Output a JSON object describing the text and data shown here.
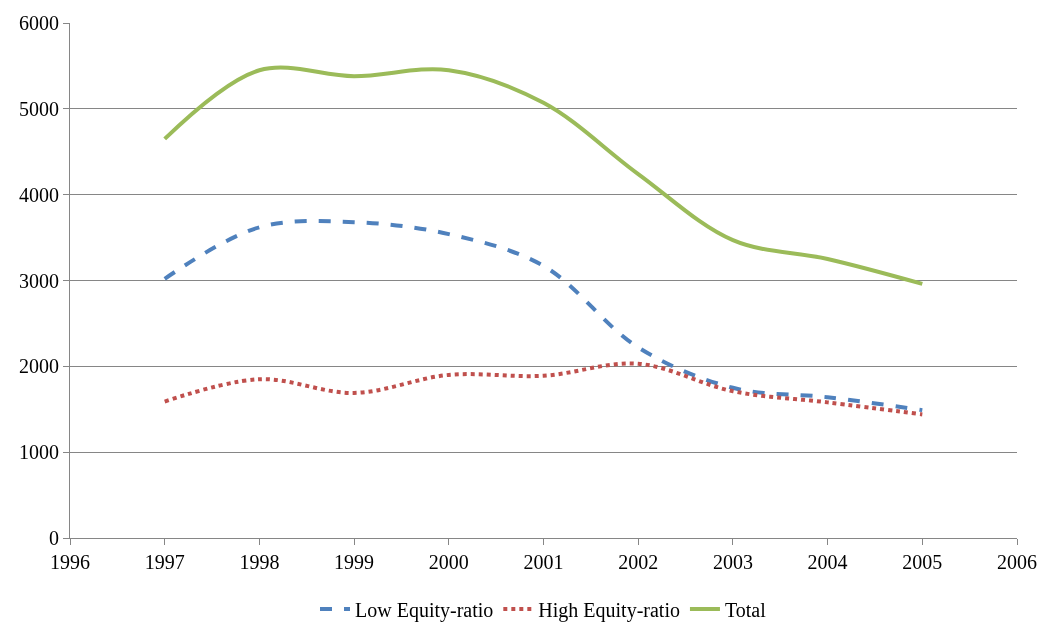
{
  "chart_data": {
    "type": "line",
    "x": [
      1997,
      1998,
      1999,
      2000,
      2001,
      2002,
      2003,
      2004,
      2005
    ],
    "series": [
      {
        "name": "Low Equity-ratio",
        "color": "#4f81bd",
        "line_style": "dashed",
        "values": [
          3020,
          3620,
          3680,
          3540,
          3170,
          2220,
          1750,
          1640,
          1490
        ]
      },
      {
        "name": "High Equity-ratio",
        "color": "#c0504d",
        "line_style": "dotted",
        "values": [
          1590,
          1850,
          1690,
          1900,
          1890,
          2030,
          1710,
          1580,
          1440
        ]
      },
      {
        "name": "Total",
        "color": "#9bbb59",
        "line_style": "solid",
        "values": [
          4650,
          5450,
          5380,
          5450,
          5070,
          4240,
          3470,
          3250,
          2960
        ]
      }
    ],
    "xlim": [
      1996,
      2006
    ],
    "xticks": [
      1996,
      1997,
      1998,
      1999,
      2000,
      2001,
      2002,
      2003,
      2004,
      2005,
      2006
    ],
    "ylim": [
      0,
      6000
    ],
    "yticks": [
      0,
      1000,
      2000,
      3000,
      4000,
      5000,
      6000
    ],
    "grid": "y",
    "legend": "bottom",
    "marker": "none"
  }
}
